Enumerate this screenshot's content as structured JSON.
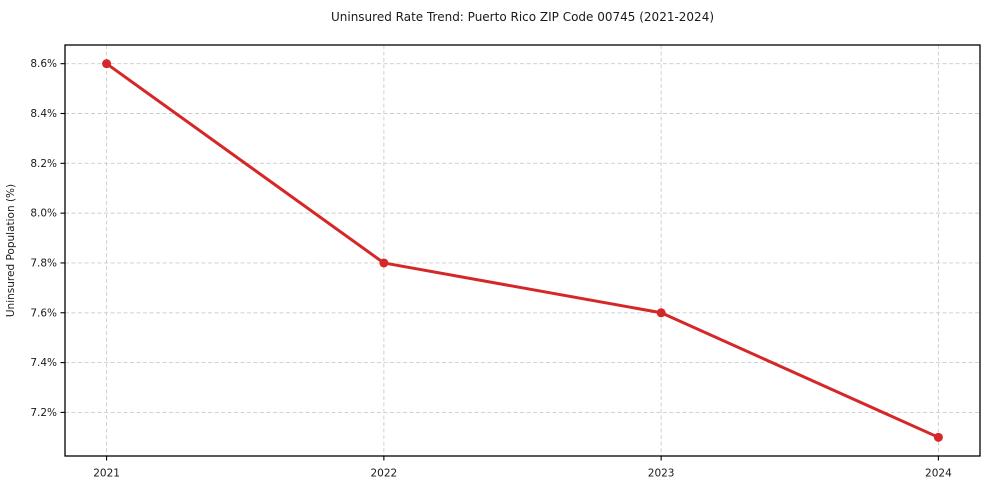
{
  "figure": {
    "background": "#ffffff"
  },
  "chart_data": {
    "type": "line",
    "title": "Uninsured Rate Trend: Puerto Rico ZIP Code 00745 (2021-2024)",
    "xlabel": "",
    "ylabel": "Uninsured Population (%)",
    "x": [
      2021,
      2022,
      2023,
      2024
    ],
    "x_tick_labels": [
      "2021",
      "2022",
      "2023",
      "2024"
    ],
    "series": [
      {
        "name": "Uninsured rate",
        "values": [
          8.6,
          7.8,
          7.6,
          7.1
        ]
      }
    ],
    "y_ticks": [
      7.2,
      7.4,
      7.6,
      7.8,
      8.0,
      8.2,
      8.4,
      8.6
    ],
    "y_tick_labels": [
      "7.2%",
      "7.4%",
      "7.6%",
      "7.8%",
      "8.0%",
      "8.2%",
      "8.4%",
      "8.6%"
    ],
    "xlim": [
      2020.85,
      2024.15
    ],
    "ylim": [
      7.025,
      8.675
    ],
    "grid": true,
    "grid_style": "dashed",
    "legend": "none",
    "colors": {
      "line": "#d62728",
      "marker": "#d62728",
      "grid": "#cccccc",
      "axis": "#000000",
      "text": "#1a1a1a"
    }
  }
}
